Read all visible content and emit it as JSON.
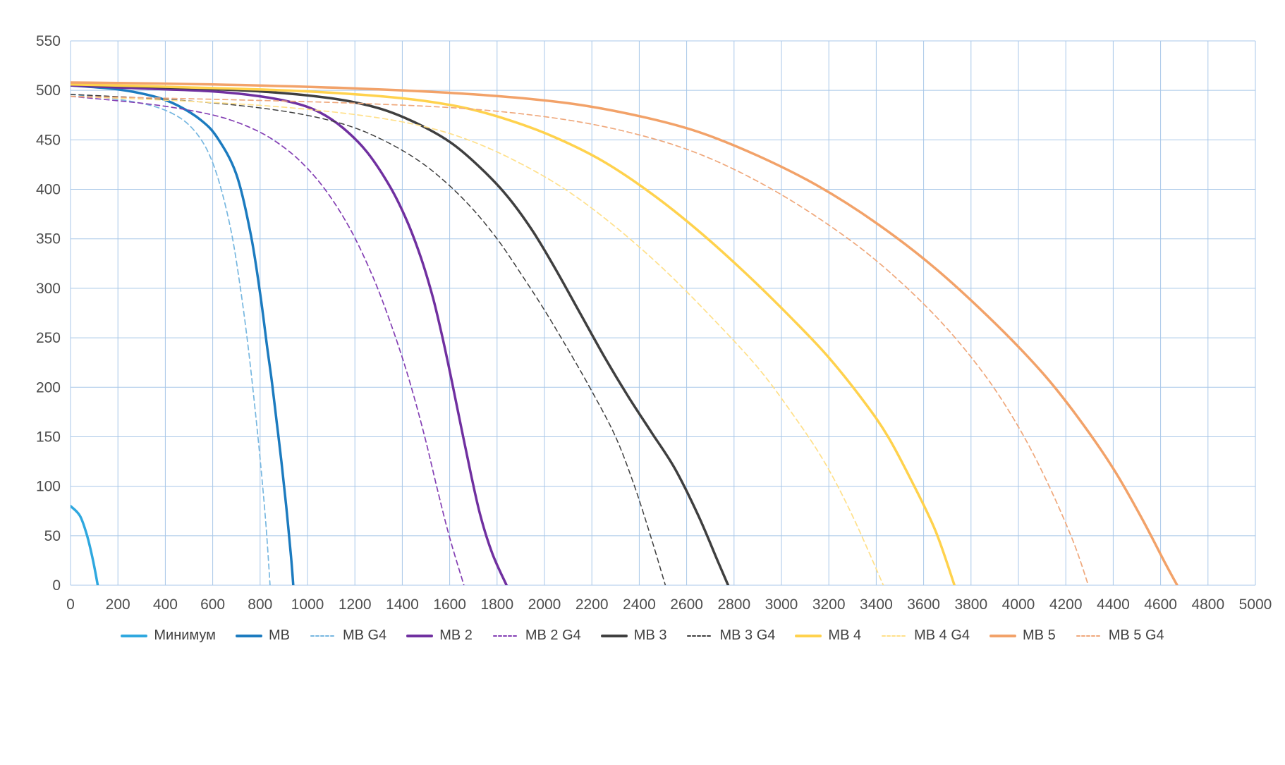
{
  "chart_data": {
    "type": "line",
    "title": "",
    "xlabel": "",
    "ylabel": "",
    "xlim": [
      0,
      5000
    ],
    "ylim": [
      0,
      550
    ],
    "x_tick_step": 200,
    "y_tick_step": 50,
    "grid": true,
    "grid_color": "#A8C7E8",
    "tick_label_color": "#4d4d4d",
    "legend_position": "bottom",
    "series": [
      {
        "name": "Минимум",
        "color": "#2FA8DF",
        "dashed": false,
        "width": 3.5,
        "points": [
          [
            0,
            80
          ],
          [
            40,
            70
          ],
          [
            70,
            50
          ],
          [
            95,
            25
          ],
          [
            115,
            0
          ]
        ]
      },
      {
        "name": "MB",
        "color": "#1C7BBF",
        "dashed": false,
        "width": 3.5,
        "points": [
          [
            0,
            505
          ],
          [
            200,
            501
          ],
          [
            350,
            494
          ],
          [
            450,
            485
          ],
          [
            550,
            470
          ],
          [
            620,
            452
          ],
          [
            700,
            415
          ],
          [
            760,
            355
          ],
          [
            800,
            295
          ],
          [
            830,
            240
          ],
          [
            850,
            205
          ],
          [
            870,
            165
          ],
          [
            890,
            125
          ],
          [
            910,
            80
          ],
          [
            930,
            30
          ],
          [
            940,
            0
          ]
        ]
      },
      {
        "name": "MB G4",
        "color": "#77B7E0",
        "dashed": true,
        "width": 1.7,
        "points": [
          [
            0,
            496
          ],
          [
            200,
            491
          ],
          [
            350,
            484
          ],
          [
            450,
            474
          ],
          [
            520,
            460
          ],
          [
            580,
            438
          ],
          [
            630,
            405
          ],
          [
            680,
            355
          ],
          [
            720,
            295
          ],
          [
            750,
            240
          ],
          [
            780,
            175
          ],
          [
            805,
            115
          ],
          [
            825,
            60
          ],
          [
            842,
            0
          ]
        ]
      },
      {
        "name": "MB 2",
        "color": "#7030A0",
        "dashed": false,
        "width": 3.5,
        "points": [
          [
            0,
            505
          ],
          [
            300,
            502
          ],
          [
            600,
            499
          ],
          [
            800,
            494
          ],
          [
            950,
            487
          ],
          [
            1050,
            478
          ],
          [
            1150,
            462
          ],
          [
            1250,
            438
          ],
          [
            1350,
            402
          ],
          [
            1420,
            368
          ],
          [
            1480,
            330
          ],
          [
            1530,
            290
          ],
          [
            1570,
            250
          ],
          [
            1610,
            205
          ],
          [
            1650,
            158
          ],
          [
            1690,
            112
          ],
          [
            1730,
            70
          ],
          [
            1780,
            32
          ],
          [
            1840,
            0
          ]
        ]
      },
      {
        "name": "MB 2 G4",
        "color": "#8440B4",
        "dashed": true,
        "width": 1.7,
        "points": [
          [
            0,
            494
          ],
          [
            300,
            487
          ],
          [
            500,
            480
          ],
          [
            650,
            472
          ],
          [
            780,
            460
          ],
          [
            880,
            446
          ],
          [
            980,
            426
          ],
          [
            1080,
            398
          ],
          [
            1180,
            360
          ],
          [
            1270,
            315
          ],
          [
            1340,
            272
          ],
          [
            1400,
            230
          ],
          [
            1450,
            190
          ],
          [
            1500,
            145
          ],
          [
            1550,
            95
          ],
          [
            1600,
            48
          ],
          [
            1660,
            0
          ]
        ]
      },
      {
        "name": "MB 3",
        "color": "#3F3F3F",
        "dashed": false,
        "width": 3.5,
        "points": [
          [
            0,
            506
          ],
          [
            400,
            503
          ],
          [
            800,
            499
          ],
          [
            1100,
            492
          ],
          [
            1300,
            482
          ],
          [
            1450,
            468
          ],
          [
            1600,
            448
          ],
          [
            1720,
            424
          ],
          [
            1840,
            394
          ],
          [
            1950,
            358
          ],
          [
            2050,
            318
          ],
          [
            2150,
            275
          ],
          [
            2250,
            232
          ],
          [
            2350,
            192
          ],
          [
            2450,
            155
          ],
          [
            2550,
            118
          ],
          [
            2650,
            70
          ],
          [
            2730,
            25
          ],
          [
            2775,
            0
          ]
        ]
      },
      {
        "name": "MB 3 G4",
        "color": "#3F3F3F",
        "dashed": true,
        "width": 1.5,
        "points": [
          [
            0,
            496
          ],
          [
            400,
            491
          ],
          [
            700,
            485
          ],
          [
            950,
            477
          ],
          [
            1150,
            466
          ],
          [
            1300,
            452
          ],
          [
            1450,
            432
          ],
          [
            1570,
            410
          ],
          [
            1690,
            382
          ],
          [
            1800,
            350
          ],
          [
            1900,
            315
          ],
          [
            2000,
            278
          ],
          [
            2100,
            238
          ],
          [
            2200,
            196
          ],
          [
            2300,
            150
          ],
          [
            2380,
            100
          ],
          [
            2450,
            48
          ],
          [
            2510,
            0
          ]
        ]
      },
      {
        "name": "MB 4",
        "color": "#FFD24D",
        "dashed": false,
        "width": 3.5,
        "points": [
          [
            0,
            506
          ],
          [
            500,
            503
          ],
          [
            1000,
            499
          ],
          [
            1400,
            492
          ],
          [
            1650,
            483
          ],
          [
            1850,
            470
          ],
          [
            2050,
            452
          ],
          [
            2250,
            428
          ],
          [
            2450,
            396
          ],
          [
            2650,
            358
          ],
          [
            2850,
            315
          ],
          [
            3050,
            268
          ],
          [
            3200,
            230
          ],
          [
            3350,
            185
          ],
          [
            3450,
            150
          ],
          [
            3550,
            105
          ],
          [
            3650,
            55
          ],
          [
            3730,
            0
          ]
        ]
      },
      {
        "name": "MB 4 G4",
        "color": "#FFE08A",
        "dashed": true,
        "width": 1.7,
        "points": [
          [
            0,
            494
          ],
          [
            500,
            489
          ],
          [
            900,
            483
          ],
          [
            1250,
            474
          ],
          [
            1500,
            463
          ],
          [
            1700,
            448
          ],
          [
            1900,
            426
          ],
          [
            2100,
            398
          ],
          [
            2300,
            362
          ],
          [
            2500,
            320
          ],
          [
            2700,
            272
          ],
          [
            2900,
            220
          ],
          [
            3050,
            172
          ],
          [
            3180,
            125
          ],
          [
            3300,
            70
          ],
          [
            3430,
            0
          ]
        ]
      },
      {
        "name": "MB 5",
        "color": "#F2A269",
        "dashed": false,
        "width": 3.5,
        "points": [
          [
            0,
            508
          ],
          [
            600,
            506
          ],
          [
            1200,
            502
          ],
          [
            1700,
            496
          ],
          [
            2100,
            487
          ],
          [
            2400,
            474
          ],
          [
            2650,
            458
          ],
          [
            2900,
            434
          ],
          [
            3150,
            404
          ],
          [
            3400,
            366
          ],
          [
            3650,
            320
          ],
          [
            3900,
            265
          ],
          [
            4100,
            215
          ],
          [
            4250,
            170
          ],
          [
            4400,
            118
          ],
          [
            4520,
            68
          ],
          [
            4620,
            22
          ],
          [
            4670,
            0
          ]
        ]
      },
      {
        "name": "MB 5 G4",
        "color": "#EFA87C",
        "dashed": true,
        "width": 1.7,
        "points": [
          [
            0,
            494
          ],
          [
            600,
            491
          ],
          [
            1200,
            487
          ],
          [
            1700,
            481
          ],
          [
            2100,
            470
          ],
          [
            2400,
            455
          ],
          [
            2650,
            436
          ],
          [
            2900,
            408
          ],
          [
            3150,
            372
          ],
          [
            3400,
            328
          ],
          [
            3650,
            272
          ],
          [
            3850,
            215
          ],
          [
            4000,
            160
          ],
          [
            4120,
            105
          ],
          [
            4230,
            45
          ],
          [
            4295,
            0
          ]
        ]
      }
    ]
  }
}
